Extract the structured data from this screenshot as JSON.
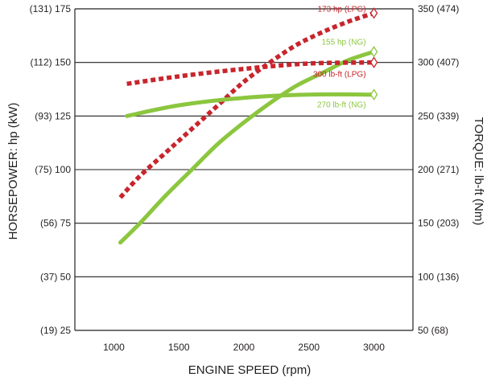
{
  "chart_data": {
    "type": "line",
    "xlabel": "ENGINE SPEED (rpm)",
    "ylabel_left": "HORSEPOWER: hp (kW)",
    "ylabel_right": "TORQUE: lb-ft (Nm)",
    "x_ticks": [
      "1000",
      "1500",
      "2000",
      "2500",
      "3000"
    ],
    "x_tick_values": [
      1000,
      1500,
      2000,
      2500,
      3000
    ],
    "xlim": [
      700,
      3300
    ],
    "y_left_ticks": [
      {
        "value": 25,
        "label": "(19) 25"
      },
      {
        "value": 50,
        "label": "(37) 50"
      },
      {
        "value": 75,
        "label": "(56) 75"
      },
      {
        "value": 100,
        "label": "(75) 100"
      },
      {
        "value": 125,
        "label": "(93) 125"
      },
      {
        "value": 150,
        "label": "(112) 150"
      },
      {
        "value": 175,
        "label": "(131) 175"
      }
    ],
    "y_right_ticks": [
      {
        "value": 50,
        "label": "50 (68)"
      },
      {
        "value": 100,
        "label": "100 (136)"
      },
      {
        "value": 150,
        "label": "150 (203)"
      },
      {
        "value": 200,
        "label": "200 (271)"
      },
      {
        "value": 250,
        "label": "250 (339)"
      },
      {
        "value": 300,
        "label": "300 (407)"
      },
      {
        "value": 350,
        "label": "350 (474)"
      }
    ],
    "ylim_left": [
      25,
      175
    ],
    "ylim_right": [
      50,
      350
    ],
    "gridlines_at_left": [
      50,
      75,
      100,
      125,
      150
    ],
    "series": [
      {
        "label": "173 hp (LPG)",
        "axis": "left",
        "color": "#c8252c",
        "style": "dashed",
        "x": [
          1050,
          1200,
          1400,
          1600,
          1800,
          2000,
          2200,
          2400,
          2600,
          2800,
          3000
        ],
        "y": [
          87,
          97,
          108,
          119,
          130,
          141,
          150,
          158,
          164,
          169,
          173
        ]
      },
      {
        "label": "155 hp (NG)",
        "axis": "left",
        "color": "#8cc63f",
        "style": "solid",
        "x": [
          1050,
          1200,
          1400,
          1600,
          1800,
          2000,
          2200,
          2400,
          2600,
          2800,
          3000
        ],
        "y": [
          66,
          75,
          88,
          100,
          112,
          122,
          131,
          139,
          145,
          151,
          155
        ]
      },
      {
        "label": "300 lb-ft (LPG)",
        "axis": "right",
        "color": "#c8252c",
        "style": "dashed",
        "x": [
          1100,
          1500,
          2000,
          2500,
          3000
        ],
        "y": [
          280,
          287,
          294,
          299,
          300
        ]
      },
      {
        "label": "270 lb-ft (NG)",
        "axis": "right",
        "color": "#8cc63f",
        "style": "solid",
        "x": [
          1100,
          1500,
          2000,
          2500,
          3000
        ],
        "y": [
          250,
          260,
          267,
          270,
          270
        ]
      }
    ]
  }
}
